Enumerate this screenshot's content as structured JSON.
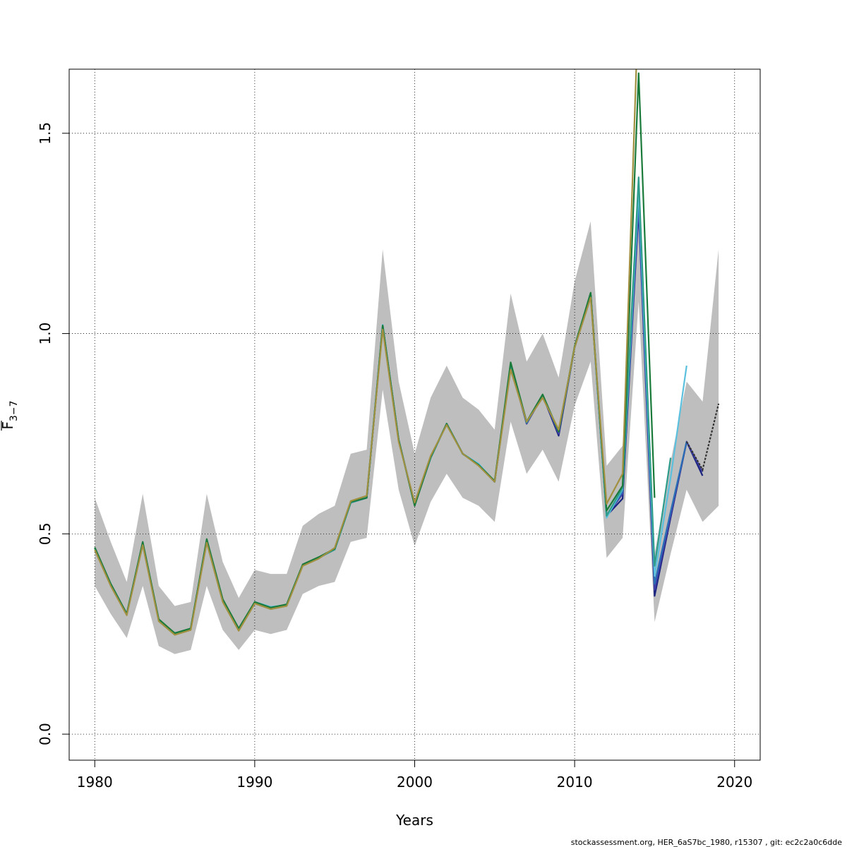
{
  "chart_data": {
    "type": "line",
    "title": "",
    "xlabel": "Years",
    "ylabel_main": "F",
    "ylabel_sub": "3−7",
    "xlim": [
      1978.4,
      2021.6
    ],
    "ylim": [
      -0.065,
      1.66
    ],
    "xticks": [
      1980,
      1990,
      2000,
      2010,
      2020
    ],
    "xtick_labels": [
      "1980",
      "1990",
      "2000",
      "2010",
      "2020"
    ],
    "yticks": [
      0.0,
      0.5,
      1.0,
      1.5
    ],
    "ytick_labels": [
      "0.0",
      "0.5",
      "1.0",
      "1.5"
    ],
    "grid": true,
    "ci_band": {
      "x": [
        1980,
        1981,
        1982,
        1983,
        1984,
        1985,
        1986,
        1987,
        1988,
        1989,
        1990,
        1991,
        1992,
        1993,
        1994,
        1995,
        1996,
        1997,
        1998,
        1999,
        2000,
        2001,
        2002,
        2003,
        2004,
        2005,
        2006,
        2007,
        2008,
        2009,
        2010,
        2011,
        2012,
        2013,
        2014,
        2015,
        2016,
        2017,
        2018,
        2019
      ],
      "lower": [
        0.37,
        0.3,
        0.24,
        0.37,
        0.22,
        0.2,
        0.21,
        0.37,
        0.26,
        0.21,
        0.26,
        0.25,
        0.26,
        0.35,
        0.37,
        0.38,
        0.48,
        0.49,
        0.86,
        0.61,
        0.47,
        0.58,
        0.65,
        0.59,
        0.57,
        0.53,
        0.78,
        0.65,
        0.71,
        0.63,
        0.82,
        0.93,
        0.44,
        0.49,
        1.08,
        0.28,
        0.45,
        0.61,
        0.53,
        0.57
      ],
      "upper": [
        0.59,
        0.48,
        0.38,
        0.6,
        0.37,
        0.32,
        0.33,
        0.6,
        0.43,
        0.34,
        0.41,
        0.4,
        0.4,
        0.52,
        0.55,
        0.57,
        0.7,
        0.71,
        1.21,
        0.88,
        0.7,
        0.84,
        0.92,
        0.84,
        0.81,
        0.76,
        1.1,
        0.93,
        1.0,
        0.89,
        1.13,
        1.28,
        0.67,
        0.72,
        1.4,
        0.45,
        0.68,
        0.88,
        0.83,
        1.21
      ]
    },
    "series": [
      {
        "color": "#1a237e",
        "x": [
          1980,
          1981,
          1982,
          1983,
          1984,
          1985,
          1986,
          1987,
          1988,
          1989,
          1990,
          1991,
          1992,
          1993,
          1994,
          1995,
          1996,
          1997,
          1998,
          1999,
          2000,
          2001,
          2002,
          2003,
          2004,
          2005,
          2006,
          2007,
          2008,
          2009,
          2010,
          2011,
          2012,
          2013,
          2014,
          2015,
          2016,
          2017,
          2018
        ],
        "y": [
          0.465,
          0.375,
          0.3,
          0.478,
          0.285,
          0.252,
          0.263,
          0.485,
          0.335,
          0.262,
          0.328,
          0.316,
          0.322,
          0.422,
          0.44,
          0.461,
          0.578,
          0.59,
          1.02,
          0.735,
          0.572,
          0.69,
          0.775,
          0.7,
          0.672,
          0.63,
          0.92,
          0.775,
          0.845,
          0.745,
          0.965,
          1.1,
          0.545,
          0.588,
          1.31,
          0.345,
          0.54,
          0.73,
          0.645
        ]
      },
      {
        "color": "#3f3fa8",
        "x": [
          1980,
          1981,
          1982,
          1983,
          1984,
          1985,
          1986,
          1987,
          1988,
          1989,
          1990,
          1991,
          1992,
          1993,
          1994,
          1995,
          1996,
          1997,
          1998,
          1999,
          2000,
          2001,
          2002,
          2003,
          2004,
          2005,
          2006,
          2007,
          2008,
          2009,
          2010,
          2011,
          2012,
          2013,
          2014,
          2015,
          2016,
          2017,
          2018
        ],
        "y": [
          0.465,
          0.375,
          0.3,
          0.478,
          0.285,
          0.252,
          0.263,
          0.485,
          0.335,
          0.262,
          0.328,
          0.316,
          0.322,
          0.422,
          0.44,
          0.461,
          0.578,
          0.59,
          1.02,
          0.735,
          0.572,
          0.69,
          0.775,
          0.7,
          0.672,
          0.63,
          0.92,
          0.775,
          0.845,
          0.75,
          0.965,
          1.1,
          0.545,
          0.6,
          1.32,
          0.36,
          0.545,
          0.73,
          0.655
        ]
      },
      {
        "color": "#2a6fb5",
        "x": [
          1980,
          1981,
          1982,
          1983,
          1984,
          1985,
          1986,
          1987,
          1988,
          1989,
          1990,
          1991,
          1992,
          1993,
          1994,
          1995,
          1996,
          1997,
          1998,
          1999,
          2000,
          2001,
          2002,
          2003,
          2004,
          2005,
          2006,
          2007,
          2008,
          2009,
          2010,
          2011,
          2012,
          2013,
          2014,
          2015,
          2016,
          2017
        ],
        "y": [
          0.465,
          0.375,
          0.3,
          0.478,
          0.285,
          0.252,
          0.263,
          0.485,
          0.335,
          0.262,
          0.328,
          0.316,
          0.322,
          0.422,
          0.44,
          0.461,
          0.578,
          0.59,
          1.02,
          0.735,
          0.572,
          0.69,
          0.775,
          0.7,
          0.672,
          0.63,
          0.92,
          0.778,
          0.845,
          0.755,
          0.965,
          1.1,
          0.545,
          0.605,
          1.34,
          0.375,
          0.555,
          0.73
        ]
      },
      {
        "color": "#5bc0de",
        "x": [
          1980,
          1981,
          1982,
          1983,
          1984,
          1985,
          1986,
          1987,
          1988,
          1989,
          1990,
          1991,
          1992,
          1993,
          1994,
          1995,
          1996,
          1997,
          1998,
          1999,
          2000,
          2001,
          2002,
          2003,
          2004,
          2005,
          2006,
          2007,
          2008,
          2009,
          2010,
          2011,
          2012,
          2013,
          2014,
          2015,
          2016,
          2017
        ],
        "y": [
          0.465,
          0.375,
          0.3,
          0.478,
          0.285,
          0.252,
          0.263,
          0.485,
          0.335,
          0.262,
          0.33,
          0.318,
          0.322,
          0.422,
          0.44,
          0.461,
          0.578,
          0.594,
          1.022,
          0.735,
          0.572,
          0.69,
          0.775,
          0.7,
          0.675,
          0.63,
          0.92,
          0.778,
          0.845,
          0.758,
          0.965,
          1.1,
          0.54,
          0.612,
          1.36,
          0.395,
          0.64,
          0.92
        ]
      },
      {
        "color": "#2e9c8a",
        "x": [
          1980,
          1981,
          1982,
          1983,
          1984,
          1985,
          1986,
          1987,
          1988,
          1989,
          1990,
          1991,
          1992,
          1993,
          1994,
          1995,
          1996,
          1997,
          1998,
          1999,
          2000,
          2001,
          2002,
          2003,
          2004,
          2005,
          2006,
          2007,
          2008,
          2009,
          2010,
          2011,
          2012,
          2013,
          2014,
          2015,
          2016
        ],
        "y": [
          0.465,
          0.375,
          0.3,
          0.478,
          0.285,
          0.252,
          0.263,
          0.485,
          0.335,
          0.262,
          0.328,
          0.316,
          0.322,
          0.422,
          0.44,
          0.461,
          0.578,
          0.59,
          1.02,
          0.735,
          0.572,
          0.69,
          0.775,
          0.7,
          0.672,
          0.63,
          0.92,
          0.778,
          0.845,
          0.757,
          0.965,
          1.1,
          0.545,
          0.615,
          1.39,
          0.42,
          0.69
        ]
      },
      {
        "color": "#1a7a3a",
        "x": [
          1980,
          1981,
          1982,
          1983,
          1984,
          1985,
          1986,
          1987,
          1988,
          1989,
          1990,
          1991,
          1992,
          1993,
          1994,
          1995,
          1996,
          1997,
          1998,
          1999,
          2000,
          2001,
          2002,
          2003,
          2004,
          2005,
          2006,
          2007,
          2008,
          2009,
          2010,
          2011,
          2012,
          2013,
          2014,
          2015
        ],
        "y": [
          0.466,
          0.375,
          0.3,
          0.48,
          0.287,
          0.252,
          0.264,
          0.487,
          0.337,
          0.264,
          0.33,
          0.316,
          0.324,
          0.424,
          0.442,
          0.463,
          0.58,
          0.59,
          1.02,
          0.735,
          0.57,
          0.692,
          0.775,
          0.7,
          0.672,
          0.632,
          0.928,
          0.78,
          0.848,
          0.755,
          0.968,
          1.102,
          0.558,
          0.62,
          1.65,
          0.59
        ]
      },
      {
        "color": "#a09040",
        "x": [
          1980,
          1981,
          1982,
          1983,
          1984,
          1985,
          1986,
          1987,
          1988,
          1989,
          1990,
          1991,
          1992,
          1993,
          1994,
          1995,
          1996,
          1997,
          1998,
          1999,
          2000,
          2001,
          2002,
          2003,
          2004,
          2005,
          2006,
          2007,
          2008,
          2009,
          2010,
          2011,
          2012,
          2013,
          2013.85
        ],
        "y": [
          0.46,
          0.37,
          0.297,
          0.472,
          0.282,
          0.248,
          0.26,
          0.478,
          0.33,
          0.258,
          0.326,
          0.312,
          0.32,
          0.42,
          0.438,
          0.465,
          0.582,
          0.595,
          1.01,
          0.73,
          0.578,
          0.695,
          0.772,
          0.7,
          0.67,
          0.63,
          0.91,
          0.78,
          0.84,
          0.76,
          0.965,
          1.09,
          0.575,
          0.65,
          1.66
        ]
      }
    ],
    "point_estimate": {
      "color": "#333333",
      "x": [
        2017,
        2018,
        2019
      ],
      "y": [
        0.73,
        0.66,
        0.825
      ]
    },
    "footer": "stockassessment.org, HER_6aS7bc_1980, r15307 , git: ec2c2a0c6dde"
  }
}
